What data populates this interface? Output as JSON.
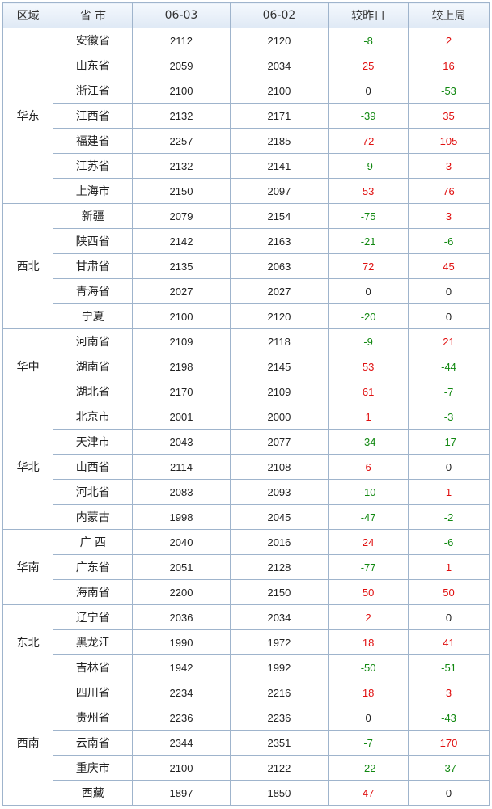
{
  "table": {
    "header": [
      "区域",
      "省 市",
      "06-03",
      "06-02",
      "较昨日",
      "较上周"
    ],
    "regions": [
      {
        "name": "华东",
        "rows": [
          [
            "安徽省",
            2112,
            2120,
            -8,
            2
          ],
          [
            "山东省",
            2059,
            2034,
            25,
            16
          ],
          [
            "浙江省",
            2100,
            2100,
            0,
            -53
          ],
          [
            "江西省",
            2132,
            2171,
            -39,
            35
          ],
          [
            "福建省",
            2257,
            2185,
            72,
            105
          ],
          [
            "江苏省",
            2132,
            2141,
            -9,
            3
          ],
          [
            "上海市",
            2150,
            2097,
            53,
            76
          ]
        ]
      },
      {
        "name": "西北",
        "rows": [
          [
            "新疆",
            2079,
            2154,
            -75,
            3
          ],
          [
            "陕西省",
            2142,
            2163,
            -21,
            -6
          ],
          [
            "甘肃省",
            2135,
            2063,
            72,
            45
          ],
          [
            "青海省",
            2027,
            2027,
            0,
            0
          ],
          [
            "宁夏",
            2100,
            2120,
            -20,
            0
          ]
        ]
      },
      {
        "name": "华中",
        "rows": [
          [
            "河南省",
            2109,
            2118,
            -9,
            21
          ],
          [
            "湖南省",
            2198,
            2145,
            53,
            -44
          ],
          [
            "湖北省",
            2170,
            2109,
            61,
            -7
          ]
        ]
      },
      {
        "name": "华北",
        "rows": [
          [
            "北京市",
            2001,
            2000,
            1,
            -3
          ],
          [
            "天津市",
            2043,
            2077,
            -34,
            -17
          ],
          [
            "山西省",
            2114,
            2108,
            6,
            0
          ],
          [
            "河北省",
            2083,
            2093,
            -10,
            1
          ],
          [
            "内蒙古",
            1998,
            2045,
            -47,
            -2
          ]
        ]
      },
      {
        "name": "华南",
        "rows": [
          [
            "广 西",
            2040,
            2016,
            24,
            -6
          ],
          [
            "广东省",
            2051,
            2128,
            -77,
            1
          ],
          [
            "海南省",
            2200,
            2150,
            50,
            50
          ]
        ]
      },
      {
        "name": "东北",
        "rows": [
          [
            "辽宁省",
            2036,
            2034,
            2,
            0
          ],
          [
            "黑龙江",
            1990,
            1972,
            18,
            41
          ],
          [
            "吉林省",
            1942,
            1992,
            -50,
            -51
          ]
        ]
      },
      {
        "name": "西南",
        "rows": [
          [
            "四川省",
            2234,
            2216,
            18,
            3
          ],
          [
            "贵州省",
            2236,
            2236,
            0,
            -43
          ],
          [
            "云南省",
            2344,
            2351,
            -7,
            170
          ],
          [
            "重庆市",
            2100,
            2122,
            -22,
            -37
          ],
          [
            "西藏",
            1897,
            1850,
            47,
            0
          ]
        ]
      }
    ]
  }
}
